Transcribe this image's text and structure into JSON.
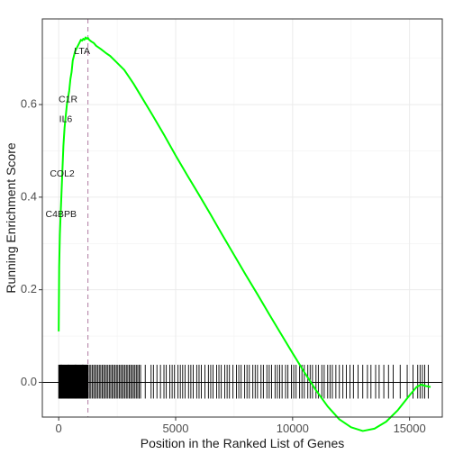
{
  "chart_data": {
    "type": "line",
    "xlabel": "Position in the Ranked List of Genes",
    "ylabel": "Running Enrichment Score",
    "xlim": [
      -700,
      16400
    ],
    "ylim": [
      -0.075,
      0.785
    ],
    "x_ticks": [
      0,
      5000,
      10000,
      15000
    ],
    "x_tick_labels": [
      "0",
      "5000",
      "10000",
      "15000"
    ],
    "y_ticks": [
      0.0,
      0.2,
      0.4,
      0.6
    ],
    "y_tick_labels": [
      "0.0",
      "0.2",
      "0.4",
      "0.6"
    ],
    "grid": true,
    "series": [
      {
        "color": "#00ff00",
        "x": [
          0,
          20,
          50,
          80,
          120,
          160,
          200,
          250,
          300,
          350,
          400,
          450,
          500,
          550,
          600,
          650,
          700,
          750,
          800,
          850,
          900,
          950,
          1000,
          1050,
          1100,
          1150,
          1200,
          1250,
          1300,
          1400,
          1500,
          1600,
          1800,
          2000,
          2200,
          2500,
          2800,
          3000,
          3200,
          3500,
          4000,
          4500,
          5000,
          5500,
          6000,
          6500,
          7000,
          7500,
          8000,
          8500,
          9000,
          9500,
          10000,
          10500,
          11000,
          11500,
          12000,
          12500,
          13000,
          13500,
          14000,
          14500,
          15000,
          15300,
          15500,
          15700,
          15900
        ],
        "y": [
          0.11,
          0.25,
          0.32,
          0.36,
          0.41,
          0.46,
          0.51,
          0.55,
          0.575,
          0.6,
          0.615,
          0.63,
          0.655,
          0.67,
          0.695,
          0.705,
          0.715,
          0.72,
          0.725,
          0.73,
          0.735,
          0.74,
          0.738,
          0.742,
          0.74,
          0.745,
          0.742,
          0.744,
          0.74,
          0.736,
          0.733,
          0.727,
          0.72,
          0.712,
          0.705,
          0.69,
          0.675,
          0.66,
          0.645,
          0.62,
          0.578,
          0.535,
          0.49,
          0.447,
          0.405,
          0.362,
          0.318,
          0.275,
          0.232,
          0.19,
          0.147,
          0.105,
          0.063,
          0.022,
          -0.017,
          -0.052,
          -0.08,
          -0.097,
          -0.105,
          -0.1,
          -0.085,
          -0.06,
          -0.028,
          -0.01,
          -0.005,
          -0.008,
          -0.01
        ]
      }
    ],
    "reference_lines": {
      "vertical_dashed_x": 1250,
      "vertical_dashed_color": "#b07aa1",
      "horizontal_y": 0.0
    },
    "gene_labels": [
      {
        "label": "LTA",
        "x": 1000,
        "y": 0.715
      },
      {
        "label": "C1R",
        "x": 400,
        "y": 0.61
      },
      {
        "label": "IL6",
        "x": 300,
        "y": 0.568
      },
      {
        "label": "COL2",
        "x": 150,
        "y": 0.45
      },
      {
        "label": "C4BPB",
        "x": 100,
        "y": 0.362
      }
    ],
    "rug": {
      "dense_segments": [
        [
          0,
          1250,
          70
        ],
        [
          1250,
          3500,
          38
        ]
      ],
      "sparse_positions": [
        3700,
        3950,
        4050,
        4200,
        4350,
        4500,
        4600,
        4750,
        4850,
        4950,
        5100,
        5200,
        5300,
        5400,
        5550,
        5650,
        5750,
        5900,
        6000,
        6100,
        6250,
        6400,
        6500,
        6600,
        6750,
        6850,
        6950,
        7100,
        7200,
        7300,
        7450,
        7600,
        7700,
        7800,
        7950,
        8050,
        8150,
        8300,
        8400,
        8500,
        8650,
        8750,
        8900,
        9000,
        9100,
        9250,
        9350,
        9450,
        9550,
        9700,
        9800,
        9950,
        10050,
        10150,
        10300,
        10400,
        10500,
        10650,
        10750,
        10850,
        11000,
        11100,
        11250,
        11350,
        11500,
        11600,
        11700,
        11850,
        12000,
        12150,
        12300,
        12450,
        12600,
        12800,
        13000,
        13200,
        13350,
        13550,
        13700,
        13900,
        14100,
        14300,
        14600,
        14900,
        15150,
        15350,
        15450,
        15550,
        15650,
        15800
      ],
      "y_top": 0.038,
      "y_bottom": -0.035
    }
  }
}
